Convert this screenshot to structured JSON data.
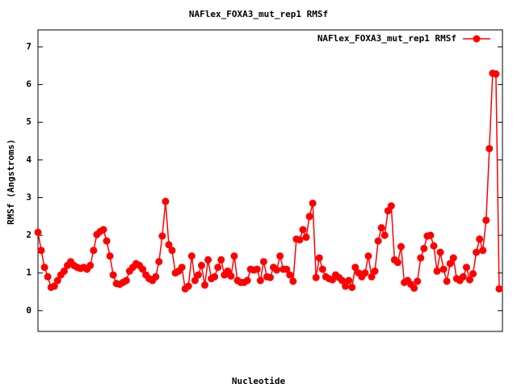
{
  "chart_data": {
    "type": "line",
    "title": "NAFlex_FOXA3_mut_rep1 RMSf",
    "xlabel": "Nucleotide",
    "ylabel": "RMSf (Angstroms)",
    "series": [
      {
        "name": "NAFlex_FOXA3_mut_rep1 RMSf",
        "color": "#ff0000",
        "values": [
          2.08,
          1.6,
          1.15,
          0.9,
          0.62,
          0.65,
          0.8,
          0.95,
          1.05,
          1.2,
          1.3,
          1.2,
          1.15,
          1.12,
          1.15,
          1.1,
          1.2,
          1.6,
          2.02,
          2.1,
          2.15,
          1.85,
          1.45,
          0.95,
          0.72,
          0.7,
          0.75,
          0.8,
          1.05,
          1.15,
          1.25,
          1.2,
          1.1,
          0.95,
          0.85,
          0.8,
          0.9,
          1.3,
          1.98,
          2.9,
          1.75,
          1.6,
          1.0,
          1.05,
          1.15,
          0.58,
          0.65,
          1.45,
          0.8,
          0.95,
          1.2,
          0.68,
          1.35,
          0.85,
          0.9,
          1.15,
          1.35,
          0.95,
          1.05,
          0.92,
          1.45,
          0.8,
          0.75,
          0.75,
          0.8,
          1.1,
          1.08,
          1.1,
          0.8,
          1.3,
          0.9,
          0.88,
          1.15,
          1.08,
          1.45,
          1.1,
          1.1,
          0.95,
          0.78,
          1.9,
          1.88,
          2.15,
          1.95,
          2.5,
          2.85,
          0.88,
          1.4,
          1.1,
          0.9,
          0.85,
          0.82,
          0.95,
          0.88,
          0.8,
          0.65,
          0.8,
          0.62,
          1.15,
          1.0,
          0.9,
          1.0,
          1.45,
          0.9,
          1.05,
          1.85,
          2.2,
          2.0,
          2.65,
          2.78,
          1.35,
          1.28,
          1.7,
          0.75,
          0.8,
          0.7,
          0.6,
          0.78,
          1.4,
          1.65,
          1.98,
          2.0,
          1.72,
          1.05,
          1.55,
          1.1,
          0.78,
          1.25,
          1.4,
          0.85,
          0.8,
          0.9,
          1.15,
          0.82,
          0.98,
          1.55,
          1.9,
          1.6,
          2.4,
          4.3,
          6.3,
          6.28,
          0.58
        ]
      }
    ],
    "ylim": [
      -0.55,
      7.45
    ],
    "yticks": [
      0,
      1,
      2,
      3,
      4,
      5,
      6,
      7
    ],
    "legend": "top-right",
    "grid": false
  }
}
